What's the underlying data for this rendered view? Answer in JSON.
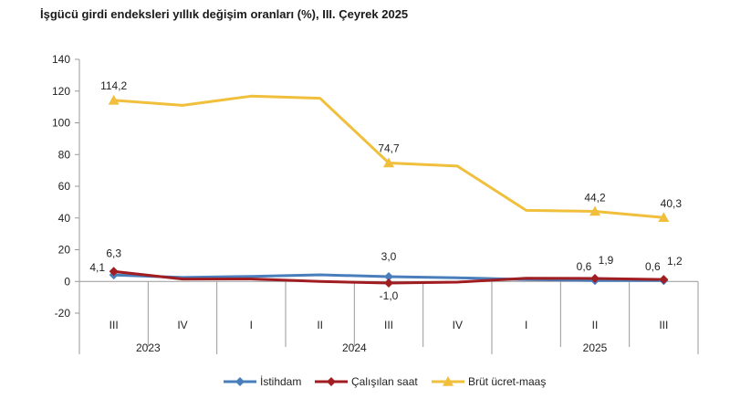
{
  "title": "İşgücü girdi endeksleri yıllık değişim oranları (%), III. Çeyrek 2025",
  "chart_data": {
    "type": "line",
    "categories": [
      "III",
      "IV",
      "I",
      "II",
      "III",
      "IV",
      "I",
      "II",
      "III"
    ],
    "year_groups": [
      {
        "label": "2023",
        "span": [
          0,
          1
        ]
      },
      {
        "label": "2024",
        "span": [
          2,
          5
        ]
      },
      {
        "label": "2025",
        "span": [
          6,
          8
        ]
      }
    ],
    "ylim": [
      -20,
      140
    ],
    "yticks": [
      -20,
      0,
      20,
      40,
      60,
      80,
      100,
      120,
      140
    ],
    "series": [
      {
        "name": "İstihdam",
        "color": "#4a7ebb",
        "marker": "diamond",
        "values": [
          4.1,
          2.5,
          3.2,
          4.2,
          3.0,
          2.3,
          1.2,
          0.6,
          0.6
        ],
        "labels": {
          "0": "4,1",
          "4": "3,0",
          "7": "0,6",
          "8": "0,6"
        }
      },
      {
        "name": "Çalışılan saat",
        "color": "#a01d22",
        "marker": "diamond",
        "values": [
          6.3,
          1.5,
          1.6,
          0.0,
          -1.0,
          -0.4,
          2.0,
          1.9,
          1.2
        ],
        "labels": {
          "0": "6,3",
          "4": "-1,0",
          "7": "1,9",
          "8": "1,2"
        }
      },
      {
        "name": "Brüt ücret-maaş",
        "color": "#f0bf3c",
        "marker": "triangle",
        "values": [
          114.2,
          111.0,
          116.8,
          115.5,
          74.7,
          72.7,
          44.8,
          44.2,
          40.3
        ],
        "labels": {
          "0": "114,2",
          "4": "74,7",
          "7": "44,2",
          "8": "40,3"
        }
      }
    ],
    "grid": false,
    "legend": "bottom"
  }
}
